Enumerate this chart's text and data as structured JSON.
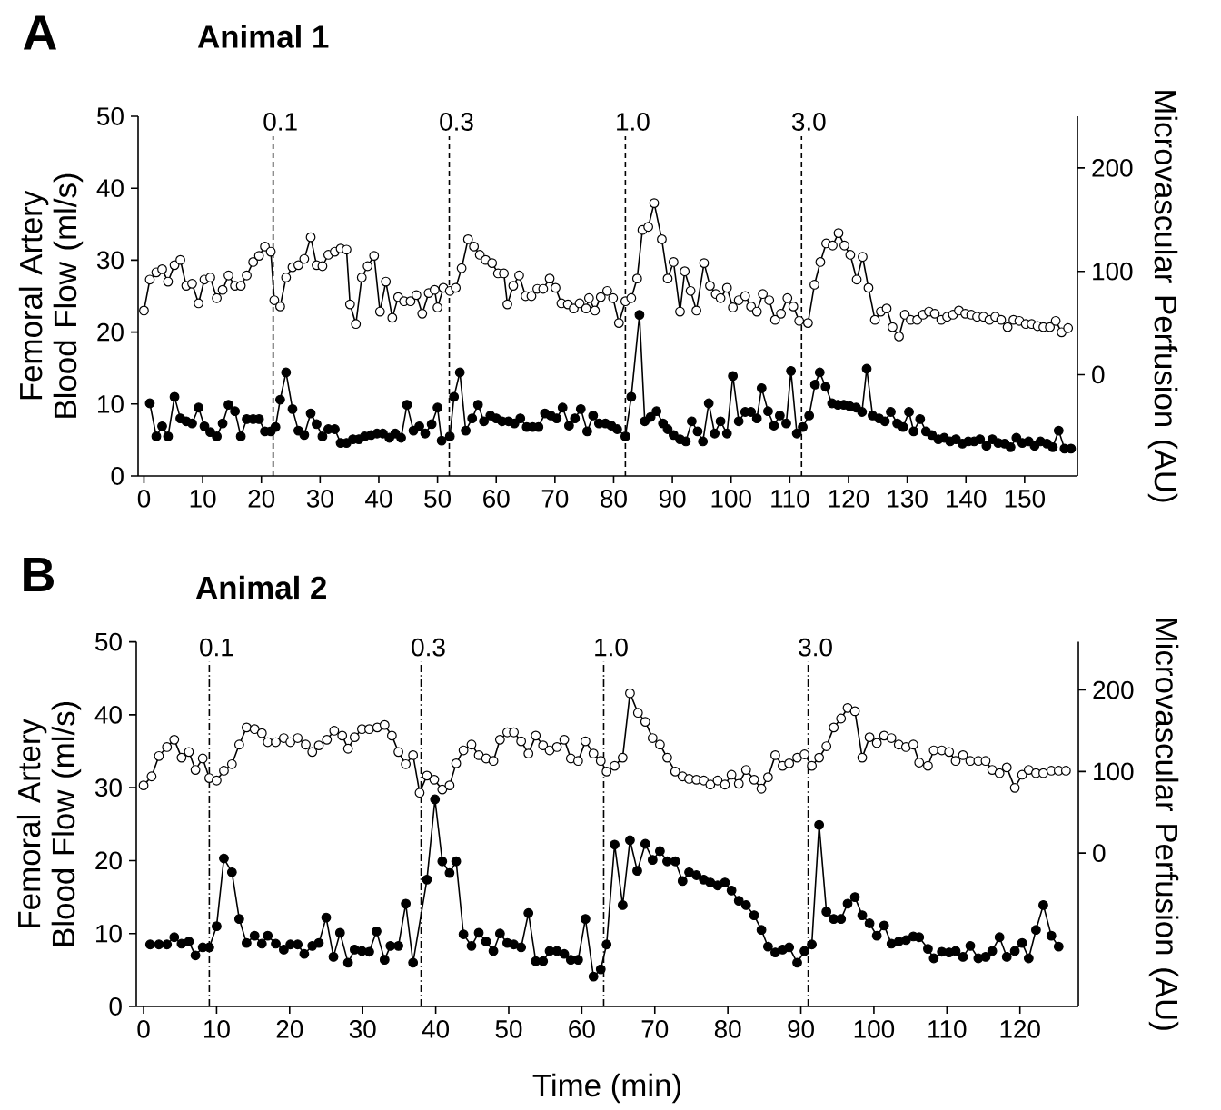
{
  "chart_data": [
    {
      "type": "line",
      "title": "Animal 1",
      "annotations": [
        "A",
        "0.1",
        "0.3",
        "1.0",
        "3.0"
      ],
      "ylabel": "Femoral Artery Blood Flow (ml/s)",
      "y2label": "Microvascular Perfusion (AU)",
      "marker": "circle",
      "xlim": [
        -1,
        159
      ],
      "xticks": [
        0,
        10,
        20,
        30,
        40,
        50,
        60,
        70,
        80,
        90,
        100,
        110,
        120,
        130,
        140,
        150
      ],
      "ylim": [
        0,
        50
      ],
      "yticks": [
        0,
        10,
        20,
        30,
        40,
        50
      ],
      "y2lim": [
        -98,
        250
      ],
      "y2ticks": [
        0,
        100,
        200
      ],
      "ref_lines": [
        {
          "axis": "x",
          "value": 22,
          "line_style": "dashed"
        },
        {
          "axis": "x",
          "value": 52,
          "line_style": "dashed"
        },
        {
          "axis": "x",
          "value": 82,
          "line_style": "dashed"
        },
        {
          "axis": "x",
          "value": 112,
          "line_style": "dashed"
        }
      ],
      "series": [
        {
          "color": "#000000",
          "axis": "y2",
          "x": [
            0,
            1.0,
            2.1,
            3.1,
            4.1,
            5.2,
            6.2,
            7.2,
            8.2,
            9.3,
            10.3,
            11.3,
            12.4,
            13.4,
            14.4,
            15.5,
            16.5,
            17.5,
            18.6,
            19.6,
            20.6,
            21.6,
            22.2,
            23.2,
            24.2,
            25.3,
            26.3,
            27.3,
            28.4,
            29.4,
            30.4,
            31.4,
            32.5,
            33.5,
            34.5,
            35.1,
            36.1,
            37.1,
            38.1,
            39.2,
            40.2,
            41.2,
            42.3,
            43.3,
            44.3,
            45.4,
            46.4,
            47.4,
            48.5,
            49.5,
            50.0,
            51.0,
            52.1,
            53.1,
            54.1,
            55.2,
            56.2,
            57.2,
            58.2,
            59.3,
            60.3,
            61.3,
            61.9,
            62.9,
            63.9,
            65.0,
            66.0,
            67.0,
            68.0,
            69.1,
            70.1,
            71.1,
            72.2,
            73.2,
            74.2,
            75.3,
            75.8,
            76.8,
            77.8,
            78.9,
            79.9,
            80.9,
            82.0,
            83.0,
            84.0,
            84.9,
            85.9,
            86.9,
            88.2,
            89.2,
            90.2,
            91.3,
            92.1,
            93.1,
            94.1,
            95.4,
            96.4,
            97.4,
            98.2,
            99.3,
            100.3,
            101.3,
            102.4,
            103.4,
            104.4,
            105.4,
            106.5,
            107.5,
            108.5,
            109.6,
            110.6,
            111.6,
            113.1,
            114.2,
            115.2,
            116.2,
            117.3,
            118.3,
            119.3,
            120.3,
            121.4,
            122.4,
            123.4,
            124.5,
            125.5,
            126.5,
            127.5,
            128.6,
            129.6,
            130.6,
            131.7,
            132.7,
            133.7,
            134.7,
            135.8,
            136.8,
            137.8,
            138.8,
            139.9,
            140.9,
            141.9,
            143.0,
            144.0,
            145.0,
            146.0,
            147.1,
            148.1,
            149.1,
            150.2,
            151.2,
            152.2,
            153.2,
            154.3,
            155.3,
            156.3,
            157.4
          ],
          "values": [
            62,
            92,
            99,
            102,
            90,
            106,
            111,
            86,
            88,
            69,
            92,
            94,
            74,
            82,
            96,
            86,
            86,
            96,
            109,
            115,
            124,
            119,
            72,
            66,
            94,
            104,
            106,
            112,
            133,
            106,
            105,
            116,
            119,
            122,
            121,
            68,
            49,
            94,
            105,
            115,
            61,
            90,
            55,
            75,
            71,
            71,
            77,
            59,
            79,
            82,
            65,
            84,
            81,
            84,
            103,
            131,
            124,
            116,
            111,
            108,
            98,
            98,
            68,
            86,
            96,
            76,
            76,
            83,
            83,
            93,
            84,
            69,
            68,
            64,
            69,
            64,
            74,
            62,
            75,
            81,
            74,
            50,
            71,
            74,
            93,
            140,
            143,
            166,
            131,
            93,
            109,
            61,
            100,
            81,
            62,
            108,
            86,
            78,
            74,
            84,
            65,
            72,
            76,
            66,
            61,
            78,
            72,
            53,
            59,
            74,
            66,
            52,
            50,
            87,
            109,
            127,
            125,
            137,
            125,
            116,
            92,
            114,
            84,
            53,
            61,
            64,
            46,
            37,
            58,
            53,
            53,
            58,
            61,
            59,
            53,
            56,
            58,
            62,
            59,
            58,
            56,
            56,
            53,
            56,
            53,
            46,
            53,
            52,
            49,
            49,
            47,
            46,
            46,
            52,
            41,
            45
          ]
        },
        {
          "color": "#000000",
          "axis": "y",
          "x": [
            1.0,
            2.1,
            3.1,
            4.1,
            5.2,
            6.2,
            7.2,
            8.2,
            9.3,
            10.3,
            11.3,
            12.4,
            13.4,
            14.4,
            15.5,
            16.5,
            17.5,
            18.6,
            19.6,
            20.6,
            21.6,
            22.4,
            23.2,
            24.2,
            25.3,
            26.3,
            27.3,
            28.4,
            29.4,
            30.4,
            31.4,
            32.5,
            33.5,
            34.5,
            35.6,
            36.6,
            37.6,
            38.7,
            39.7,
            40.7,
            41.8,
            42.8,
            43.8,
            44.8,
            45.9,
            46.9,
            47.9,
            49.0,
            50.0,
            50.7,
            52.1,
            52.8,
            53.8,
            54.8,
            55.9,
            56.9,
            57.9,
            59.0,
            60.0,
            61.0,
            62.1,
            63.1,
            64.1,
            65.2,
            66.2,
            67.2,
            68.3,
            69.3,
            70.3,
            71.3,
            72.4,
            73.4,
            74.4,
            75.5,
            76.5,
            77.5,
            78.6,
            79.6,
            80.6,
            82.0,
            83.0,
            84.4,
            85.3,
            86.3,
            87.3,
            88.4,
            89.2,
            90.2,
            91.3,
            92.3,
            93.3,
            94.3,
            95.2,
            96.2,
            97.2,
            98.2,
            99.3,
            100.3,
            101.3,
            102.4,
            103.4,
            104.4,
            105.2,
            106.3,
            107.3,
            108.3,
            109.4,
            110.2,
            111.2,
            112.2,
            113.3,
            114.3,
            115.1,
            116.1,
            117.2,
            118.2,
            119.2,
            120.2,
            121.3,
            122.3,
            123.1,
            124.1,
            125.2,
            126.2,
            127.2,
            128.3,
            129.3,
            130.3,
            131.1,
            132.2,
            133.2,
            134.2,
            135.3,
            136.3,
            137.3,
            138.3,
            139.4,
            140.4,
            141.4,
            142.4,
            143.5,
            144.5,
            145.5,
            146.6,
            147.6,
            148.6,
            149.6,
            150.7,
            151.7,
            152.7,
            153.8,
            154.8,
            155.8,
            156.8,
            157.9
          ],
          "values": [
            10.1,
            5.5,
            6.9,
            5.5,
            11.0,
            8.0,
            7.6,
            7.3,
            9.5,
            6.9,
            6.1,
            5.5,
            7.3,
            9.9,
            9.0,
            5.5,
            7.9,
            7.9,
            7.9,
            6.2,
            6.2,
            6.8,
            10.6,
            14.4,
            9.3,
            6.3,
            5.7,
            8.7,
            7.2,
            5.5,
            6.5,
            6.5,
            4.6,
            4.6,
            5.1,
            5.1,
            5.5,
            5.7,
            5.9,
            5.9,
            5.3,
            5.9,
            5.3,
            9.9,
            6.3,
            6.9,
            5.9,
            7.2,
            9.5,
            4.9,
            5.5,
            11.0,
            14.4,
            6.3,
            8.0,
            9.9,
            7.6,
            8.4,
            8.0,
            7.6,
            7.6,
            7.3,
            8.0,
            6.8,
            6.8,
            6.8,
            8.7,
            8.4,
            8.0,
            9.5,
            7.0,
            8.0,
            9.3,
            6.2,
            8.4,
            7.3,
            7.3,
            7.0,
            6.5,
            5.5,
            11.0,
            22.4,
            7.6,
            8.2,
            9.0,
            7.3,
            6.5,
            5.7,
            5.1,
            4.8,
            7.6,
            6.2,
            4.8,
            10.1,
            5.9,
            7.6,
            5.9,
            13.9,
            7.6,
            8.9,
            8.9,
            8.0,
            12.2,
            9.0,
            7.0,
            8.4,
            7.3,
            14.6,
            5.9,
            6.8,
            8.4,
            12.7,
            14.4,
            12.4,
            10.1,
            9.9,
            9.9,
            9.7,
            9.5,
            8.9,
            14.9,
            8.4,
            8.0,
            7.6,
            8.9,
            7.3,
            6.8,
            8.9,
            6.2,
            7.9,
            6.2,
            5.7,
            5.1,
            5.3,
            4.8,
            5.1,
            4.5,
            4.8,
            4.8,
            5.1,
            4.2,
            5.1,
            4.6,
            4.5,
            4.0,
            5.3,
            4.6,
            4.8,
            4.2,
            4.8,
            4.5,
            4.0,
            6.3,
            3.8,
            3.8
          ]
        }
      ]
    },
    {
      "type": "line",
      "title": "Animal 2",
      "annotations": [
        "B",
        "0.1",
        "0.3",
        "1.0",
        "3.0"
      ],
      "xlabel": "Time (min)",
      "ylabel": "Femoral Artery Blood Flow (ml/s)",
      "y2label": "Microvascular Perfusion (AU)",
      "marker": "circle",
      "xlim": [
        -1,
        128
      ],
      "xticks": [
        0,
        10,
        20,
        30,
        40,
        50,
        60,
        70,
        80,
        90,
        100,
        110,
        120
      ],
      "ylim": [
        0,
        50
      ],
      "yticks": [
        0,
        10,
        20,
        30,
        40,
        50
      ],
      "y2lim": [
        -188,
        259
      ],
      "y2ticks": [
        0,
        100,
        200
      ],
      "ref_lines": [
        {
          "axis": "x",
          "value": 9,
          "line_style": "dashdot"
        },
        {
          "axis": "x",
          "value": 38,
          "line_style": "dashdot"
        },
        {
          "axis": "x",
          "value": 63,
          "line_style": "dashdot"
        },
        {
          "axis": "x",
          "value": 91,
          "line_style": "dashdot"
        }
      ],
      "series": [
        {
          "color": "#000000",
          "axis": "y2",
          "x": [
            0,
            1.1,
            2.1,
            3.2,
            4.2,
            5.2,
            6.2,
            7.1,
            8.1,
            9.0,
            10.0,
            11.0,
            12.1,
            13.1,
            14.1,
            15.2,
            16.2,
            17.0,
            18.1,
            19.2,
            20.1,
            21.1,
            22.2,
            23.1,
            24.0,
            25.1,
            26.1,
            27.2,
            28.0,
            28.9,
            29.9,
            30.9,
            32.0,
            33.0,
            34.0,
            34.9,
            35.9,
            36.9,
            37.8,
            38.8,
            39.8,
            40.9,
            41.9,
            42.8,
            43.8,
            44.9,
            45.9,
            46.9,
            47.9,
            48.8,
            49.8,
            50.7,
            51.7,
            52.7,
            53.7,
            54.7,
            55.6,
            56.6,
            57.6,
            58.5,
            59.5,
            60.5,
            61.6,
            62.6,
            63.4,
            64.5,
            65.6,
            66.6,
            67.7,
            68.7,
            69.7,
            70.7,
            71.7,
            72.8,
            73.8,
            74.7,
            75.7,
            76.7,
            77.6,
            78.6,
            79.6,
            80.5,
            81.5,
            82.5,
            83.6,
            84.6,
            85.5,
            86.5,
            87.5,
            88.4,
            89.5,
            90.5,
            91.5,
            92.5,
            93.5,
            94.5,
            95.5,
            96.4,
            97.4,
            98.4,
            99.4,
            100.4,
            101.4,
            102.4,
            103.4,
            104.4,
            105.4,
            106.2,
            107.4,
            108.2,
            109.3,
            110.3,
            111.2,
            112.2,
            113.2,
            114.3,
            115.3,
            116.2,
            117.2,
            118.2,
            119.3,
            120.3,
            121.2,
            122.2,
            123.2,
            124.3,
            125.3,
            126.3
          ],
          "values": [
            83,
            94,
            119,
            130,
            139,
            117,
            124,
            102,
            116,
            92,
            89,
            101,
            109,
            133,
            154,
            152,
            147,
            136,
            136,
            141,
            136,
            141,
            133,
            124,
            132,
            139,
            150,
            144,
            128,
            142,
            152,
            152,
            154,
            157,
            144,
            124,
            109,
            120,
            74,
            95,
            90,
            78,
            83,
            110,
            126,
            133,
            120,
            116,
            113,
            139,
            148,
            148,
            137,
            122,
            144,
            132,
            126,
            130,
            139,
            116,
            113,
            137,
            122,
            113,
            100,
            107,
            117,
            196,
            172,
            161,
            141,
            133,
            117,
            100,
            94,
            91,
            90,
            89,
            84,
            89,
            84,
            96,
            85,
            102,
            90,
            79,
            93,
            120,
            107,
            110,
            117,
            121,
            107,
            117,
            131,
            154,
            165,
            178,
            174,
            117,
            142,
            135,
            144,
            141,
            133,
            130,
            133,
            111,
            107,
            126,
            126,
            124,
            113,
            120,
            113,
            113,
            113,
            102,
            98,
            105,
            80,
            96,
            102,
            98,
            98,
            101,
            101,
            101
          ]
        },
        {
          "color": "#000000",
          "axis": "y",
          "x": [
            0.9,
            2.1,
            3.2,
            4.2,
            5.2,
            6.2,
            7.1,
            8.1,
            9.0,
            10.0,
            11.0,
            12.1,
            13.1,
            14.1,
            15.2,
            16.2,
            17.0,
            18.1,
            19.2,
            20.1,
            21.1,
            22.0,
            23.1,
            24.0,
            25.0,
            26.0,
            26.9,
            28.0,
            28.9,
            29.9,
            30.9,
            31.9,
            33.0,
            33.8,
            34.9,
            35.9,
            36.9,
            38.8,
            39.9,
            40.9,
            41.9,
            42.8,
            43.8,
            44.9,
            45.9,
            46.9,
            47.9,
            48.8,
            49.8,
            50.7,
            51.7,
            52.7,
            53.7,
            54.7,
            55.6,
            56.6,
            57.6,
            58.5,
            59.5,
            60.5,
            61.6,
            62.6,
            63.4,
            64.5,
            65.6,
            66.6,
            67.6,
            68.7,
            69.7,
            70.7,
            71.7,
            72.8,
            73.8,
            74.7,
            75.7,
            76.7,
            77.6,
            78.6,
            79.6,
            80.5,
            81.5,
            82.5,
            83.6,
            84.6,
            85.5,
            86.5,
            87.5,
            88.4,
            89.5,
            90.5,
            91.5,
            92.5,
            93.5,
            94.5,
            95.5,
            96.4,
            97.4,
            98.4,
            99.4,
            100.4,
            101.4,
            102.4,
            103.4,
            104.4,
            105.4,
            106.2,
            107.4,
            108.2,
            109.3,
            110.3,
            111.2,
            112.2,
            113.2,
            114.3,
            115.3,
            116.2,
            117.2,
            118.2,
            119.3,
            120.3,
            121.2,
            122.2,
            123.2,
            124.3,
            125.3
          ],
          "values": [
            8.5,
            8.5,
            8.5,
            9.5,
            8.6,
            8.9,
            7.0,
            8.1,
            8.1,
            11.0,
            20.3,
            18.4,
            12.0,
            8.7,
            9.7,
            8.6,
            9.7,
            8.6,
            7.8,
            8.5,
            8.5,
            7.2,
            8.3,
            8.7,
            12.2,
            6.8,
            10.1,
            6.0,
            7.8,
            7.6,
            7.5,
            10.3,
            6.4,
            8.3,
            8.3,
            14.1,
            6.0,
            17.4,
            28.4,
            19.9,
            18.3,
            19.9,
            9.9,
            8.3,
            10.1,
            8.9,
            7.6,
            10.0,
            8.7,
            8.5,
            8.1,
            12.8,
            6.2,
            6.2,
            7.6,
            7.6,
            7.2,
            6.4,
            6.4,
            12.0,
            4.1,
            5.1,
            8.5,
            22.2,
            13.9,
            22.8,
            18.6,
            22.3,
            20.1,
            21.3,
            19.9,
            19.9,
            17.2,
            18.4,
            18.0,
            17.4,
            17.0,
            16.6,
            17.0,
            15.9,
            14.5,
            13.9,
            12.5,
            10.5,
            8.2,
            7.4,
            7.8,
            8.1,
            6.0,
            7.6,
            8.5,
            24.9,
            13.0,
            12.0,
            12.0,
            14.1,
            15.0,
            12.5,
            11.4,
            9.7,
            11.1,
            8.6,
            8.9,
            9.1,
            9.6,
            9.5,
            7.9,
            6.6,
            7.5,
            7.4,
            7.6,
            6.8,
            8.3,
            6.6,
            6.8,
            7.6,
            9.5,
            6.8,
            7.6,
            8.7,
            6.6,
            10.5,
            13.9,
            9.7,
            8.2
          ]
        }
      ]
    }
  ]
}
